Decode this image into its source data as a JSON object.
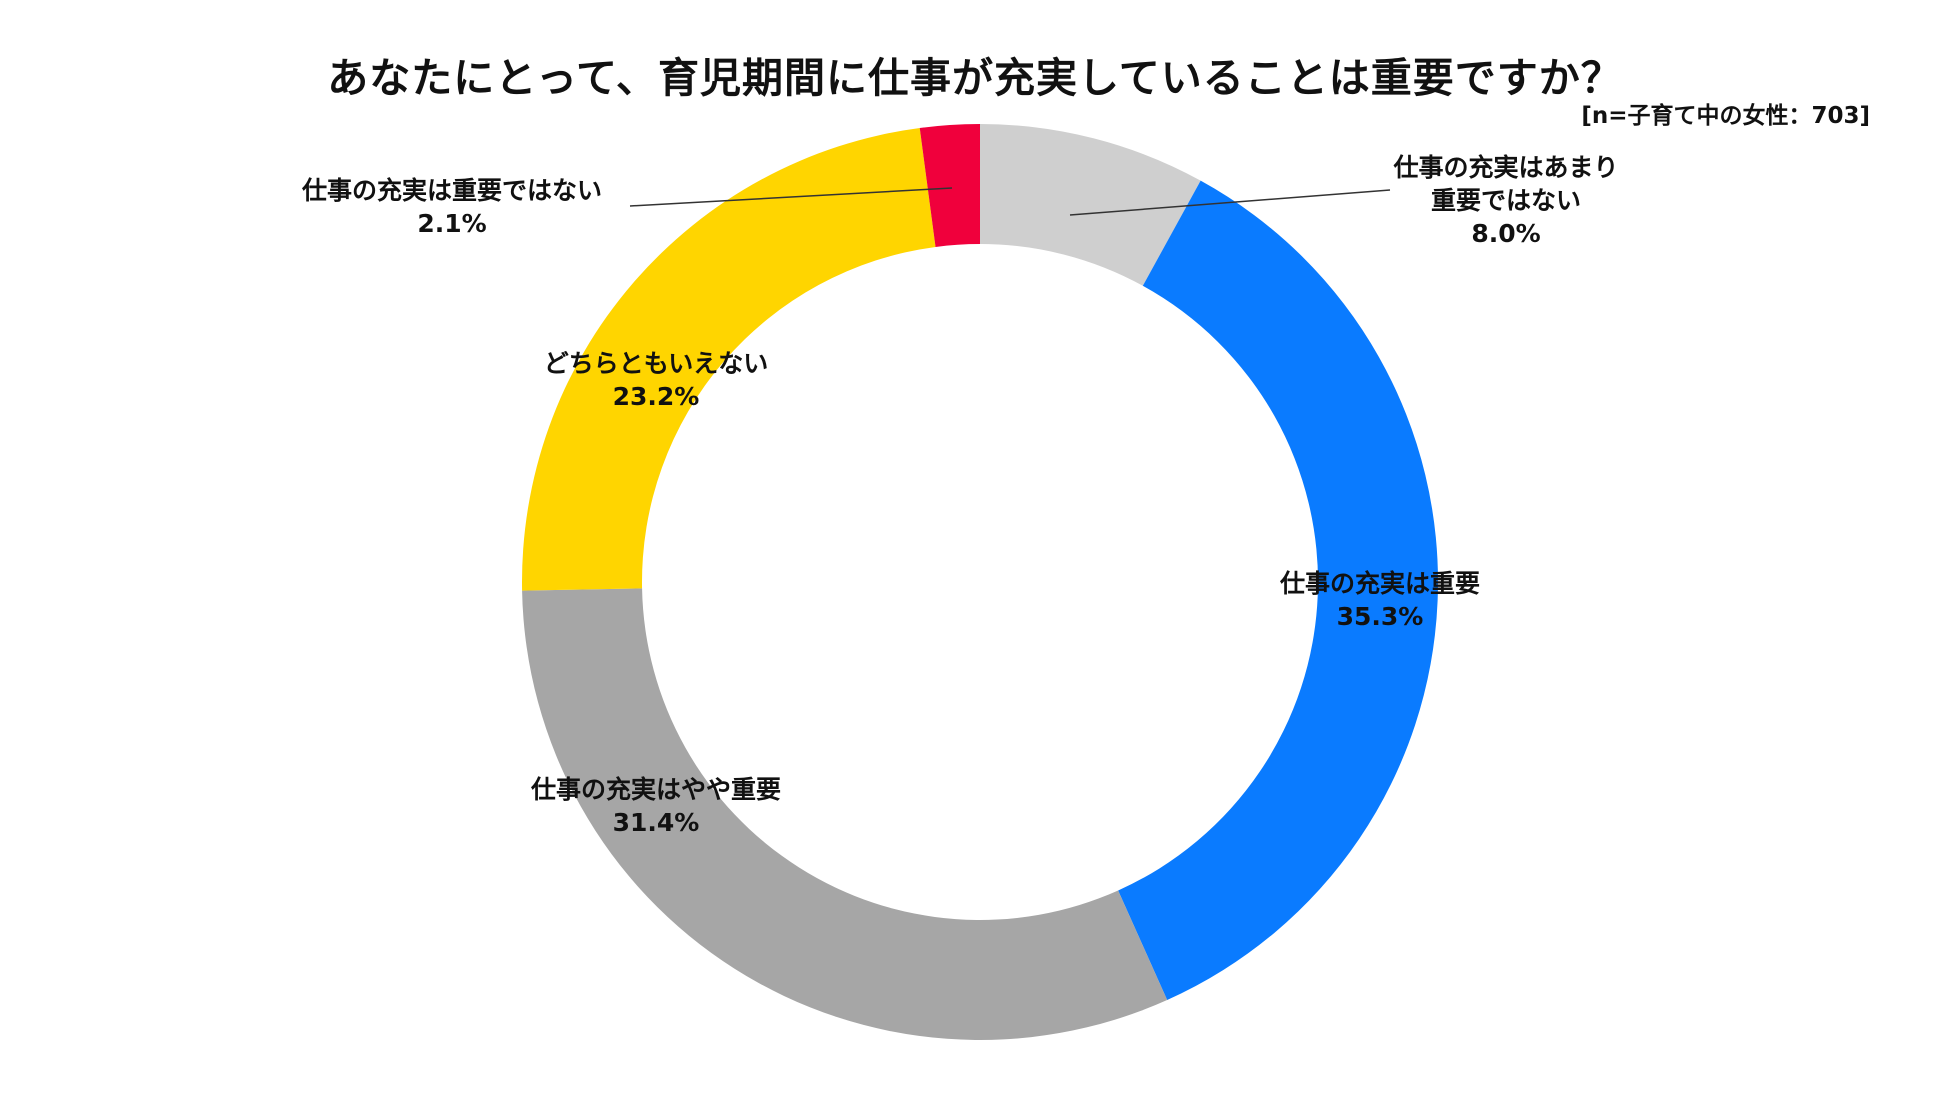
{
  "chart_data": {
    "type": "pie",
    "style": "donut",
    "title": "あなたにとって、育児期間に仕事が充実していることは重要ですか？",
    "subtitle": "[n=子育て中の女性：703]",
    "start": "12 o'clock",
    "direction": "clockwise",
    "slices": [
      {
        "label_lines": [
          "仕事の充実はあまり",
          "重要ではない"
        ],
        "value": 8.0,
        "value_label": "8.0%",
        "color": "#cfcfcf",
        "leader_line": true
      },
      {
        "label_lines": [
          "仕事の充実は重要"
        ],
        "value": 35.3,
        "value_label": "35.3%",
        "color": "#0a7bff",
        "leader_line": false
      },
      {
        "label_lines": [
          "仕事の充実はやや重要"
        ],
        "value": 31.4,
        "value_label": "31.4%",
        "color": "#a6a6a6",
        "leader_line": false
      },
      {
        "label_lines": [
          "どちらともいえない"
        ],
        "value": 23.2,
        "value_label": "23.2%",
        "color": "#ffd500",
        "leader_line": false
      },
      {
        "label_lines": [
          "仕事の充実は重要ではない"
        ],
        "value": 2.1,
        "value_label": "2.1%",
        "color": "#f0003c",
        "leader_line": true
      }
    ]
  }
}
